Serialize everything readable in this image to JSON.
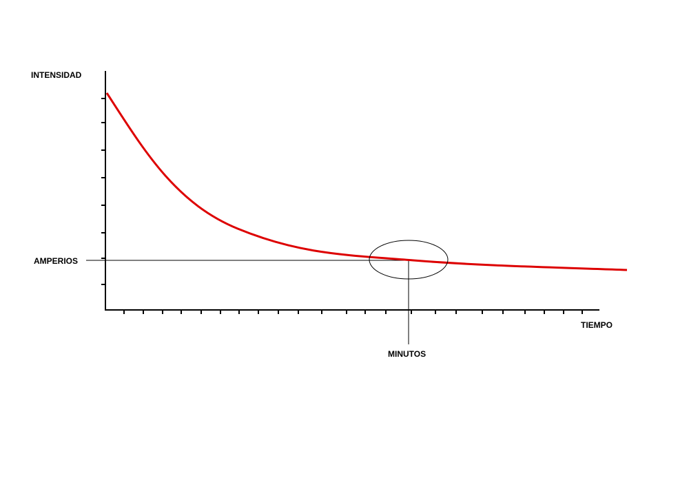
{
  "y_axis_label": "INTENSIDAD",
  "x_axis_label": "TIEMPO",
  "y_marker_label": "AMPERIOS",
  "x_marker_label": "MINUTOS"
}
